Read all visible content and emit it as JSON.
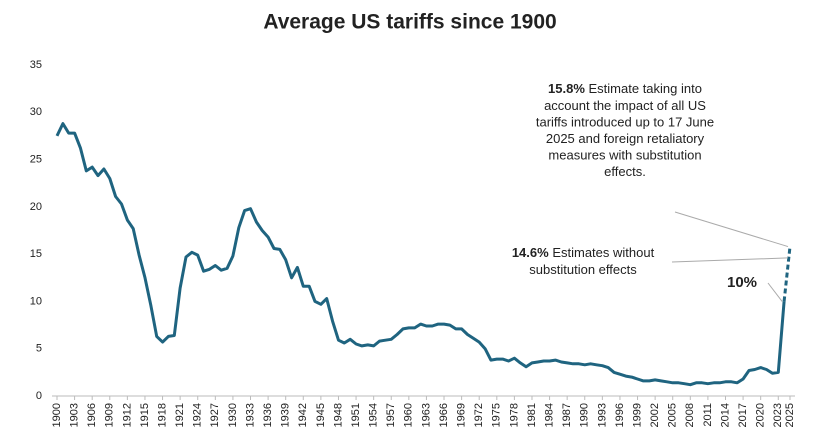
{
  "chart_data": {
    "type": "line",
    "title": "Average US tariffs since 1900",
    "x": [
      1900,
      1901,
      1902,
      1903,
      1904,
      1905,
      1906,
      1907,
      1908,
      1909,
      1910,
      1911,
      1912,
      1913,
      1914,
      1915,
      1916,
      1917,
      1918,
      1919,
      1920,
      1921,
      1922,
      1923,
      1924,
      1925,
      1926,
      1927,
      1928,
      1929,
      1930,
      1931,
      1932,
      1933,
      1934,
      1935,
      1936,
      1937,
      1938,
      1939,
      1940,
      1941,
      1942,
      1943,
      1944,
      1945,
      1946,
      1947,
      1948,
      1949,
      1950,
      1951,
      1952,
      1953,
      1954,
      1955,
      1956,
      1957,
      1958,
      1959,
      1960,
      1961,
      1962,
      1963,
      1964,
      1965,
      1966,
      1967,
      1968,
      1969,
      1970,
      1971,
      1972,
      1973,
      1974,
      1975,
      1976,
      1977,
      1978,
      1979,
      1980,
      1981,
      1982,
      1983,
      1984,
      1985,
      1986,
      1987,
      1988,
      1989,
      1990,
      1991,
      1992,
      1993,
      1994,
      1995,
      1996,
      1997,
      1998,
      1999,
      2000,
      2001,
      2002,
      2003,
      2004,
      2005,
      2006,
      2007,
      2008,
      2009,
      2010,
      2011,
      2012,
      2013,
      2014,
      2015,
      2016,
      2017,
      2018,
      2019,
      2020,
      2021,
      2022,
      2023,
      2024,
      2025
    ],
    "series": [
      {
        "color": "#1f6480",
        "style": "solid",
        "values": [
          27.5,
          28.8,
          27.8,
          27.8,
          26.2,
          23.8,
          24.2,
          23.3,
          24.0,
          23.0,
          21.1,
          20.3,
          18.6,
          17.7,
          14.9,
          12.5,
          9.6,
          6.3,
          5.7,
          6.3,
          6.4,
          11.4,
          14.7,
          15.2,
          14.9,
          13.2,
          13.4,
          13.8,
          13.3,
          13.5,
          14.8,
          17.8,
          19.6,
          19.8,
          18.4,
          17.5,
          16.8,
          15.6,
          15.5,
          14.4,
          12.5,
          13.6,
          11.6,
          11.6,
          10.0,
          9.7,
          10.3,
          7.9,
          5.9,
          5.6,
          6.0,
          5.5,
          5.3,
          5.4,
          5.3,
          5.8,
          5.9,
          6.0,
          6.5,
          7.1,
          7.2,
          7.2,
          7.6,
          7.4,
          7.4,
          7.6,
          7.6,
          7.5,
          7.1,
          7.1,
          6.5,
          6.1,
          5.7,
          5.0,
          3.8,
          3.9,
          3.9,
          3.7,
          4.0,
          3.5,
          3.1,
          3.5,
          3.6,
          3.7,
          3.7,
          3.8,
          3.6,
          3.5,
          3.4,
          3.4,
          3.3,
          3.4,
          3.3,
          3.2,
          3.0,
          2.5,
          2.3,
          2.1,
          2.0,
          1.8,
          1.6,
          1.6,
          1.7,
          1.6,
          1.5,
          1.4,
          1.4,
          1.3,
          1.2,
          1.4,
          1.4,
          1.3,
          1.4,
          1.4,
          1.5,
          1.5,
          1.4,
          1.8,
          2.7,
          2.8,
          3.0,
          2.8,
          2.4,
          2.5,
          10.0,
          null
        ]
      },
      {
        "color": "#1f6480",
        "style": "dashed",
        "values": [
          null,
          null,
          null,
          null,
          null,
          null,
          null,
          null,
          null,
          null,
          null,
          null,
          null,
          null,
          null,
          null,
          null,
          null,
          null,
          null,
          null,
          null,
          null,
          null,
          null,
          null,
          null,
          null,
          null,
          null,
          null,
          null,
          null,
          null,
          null,
          null,
          null,
          null,
          null,
          null,
          null,
          null,
          null,
          null,
          null,
          null,
          null,
          null,
          null,
          null,
          null,
          null,
          null,
          null,
          null,
          null,
          null,
          null,
          null,
          null,
          null,
          null,
          null,
          null,
          null,
          null,
          null,
          null,
          null,
          null,
          null,
          null,
          null,
          null,
          null,
          null,
          null,
          null,
          null,
          null,
          null,
          null,
          null,
          null,
          null,
          null,
          null,
          null,
          null,
          null,
          null,
          null,
          null,
          null,
          null,
          null,
          null,
          null,
          null,
          null,
          null,
          null,
          null,
          null,
          null,
          null,
          null,
          null,
          null,
          null,
          null,
          null,
          null,
          null,
          null,
          null,
          null,
          null,
          null,
          null,
          null,
          null,
          null,
          null,
          10.0,
          15.8
        ]
      }
    ],
    "annotations": [
      {
        "label": "15.8%",
        "value": 15.8,
        "x": 2025,
        "lines": [
          "Estimate taking into",
          "account the impact of all US",
          "tariffs introduced up to 17 June",
          "2025 and foreign retaliatory",
          "measures with substitution",
          "effects."
        ]
      },
      {
        "label": "14.6%",
        "value": 14.6,
        "x": 2025,
        "lines": [
          "Estimates without",
          "substitution effects"
        ]
      },
      {
        "label": "10%",
        "value": 10,
        "x": 2024,
        "lines": []
      }
    ],
    "xlim": [
      1900,
      2025
    ],
    "xticks": [
      1900,
      1903,
      1906,
      1909,
      1912,
      1915,
      1918,
      1921,
      1924,
      1927,
      1930,
      1933,
      1936,
      1939,
      1942,
      1945,
      1948,
      1951,
      1954,
      1957,
      1960,
      1963,
      1966,
      1969,
      1972,
      1975,
      1978,
      1981,
      1984,
      1987,
      1990,
      1993,
      1996,
      1999,
      2002,
      2005,
      2008,
      2011,
      2014,
      2017,
      2020,
      2023,
      2025
    ],
    "ylim": [
      0,
      35
    ],
    "yticks": [
      0,
      5,
      10,
      15,
      20,
      25,
      30,
      35
    ],
    "grid": false
  }
}
